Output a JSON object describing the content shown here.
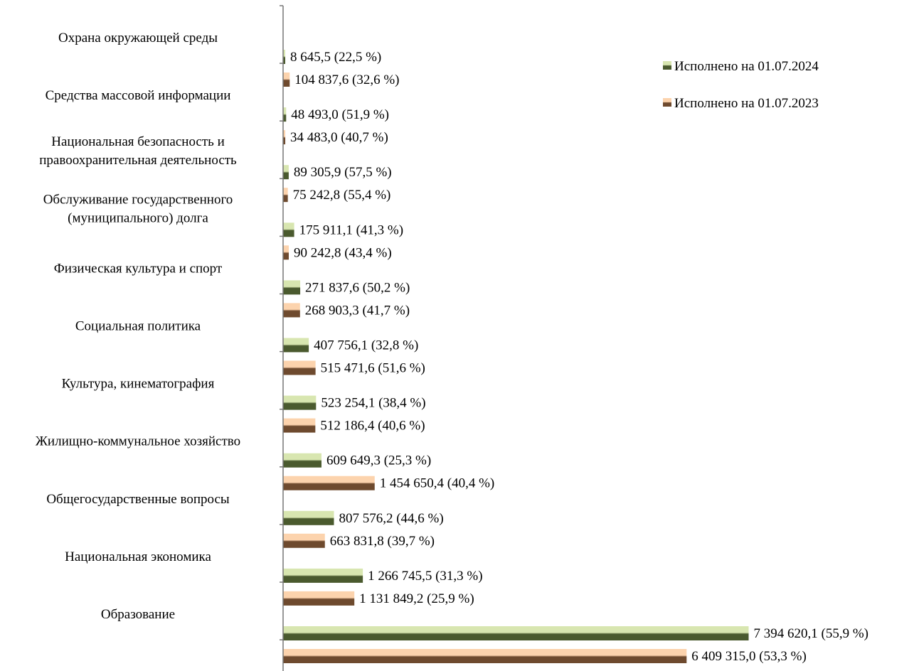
{
  "chart_data": {
    "type": "bar",
    "orientation": "horizontal",
    "categories": [
      "Охрана окружающей среды",
      "Средства массовой информации",
      "Национальная безопасность и правоохранительная деятельность",
      "Обслуживание государственного (муниципального) долга",
      "Физическая культура и спорт",
      "Социальная политика",
      "Культура, кинематография",
      "Жилищно-коммунальное хозяйство",
      "Общегосударственные вопросы",
      "Национальная экономика",
      "Образование"
    ],
    "category_lines": [
      [
        "Охрана окружающей среды"
      ],
      [
        "Средства массовой информации"
      ],
      [
        "Национальная безопасность и",
        "правоохранительная деятельность"
      ],
      [
        "Обслуживание государственного",
        "(муниципального) долга"
      ],
      [
        "Физическая культура и спорт"
      ],
      [
        "Социальная политика"
      ],
      [
        "Культура, кинематография"
      ],
      [
        "Жилищно-коммунальное хозяйство"
      ],
      [
        "Общегосударственные вопросы"
      ],
      [
        "Национальная экономика"
      ],
      [
        "Образование"
      ]
    ],
    "series": [
      {
        "name": "Исполнено на 01.07.2024",
        "values": [
          8645.5,
          48493.0,
          89305.9,
          175911.1,
          271837.6,
          407756.1,
          523254.1,
          609649.3,
          807576.2,
          1266745.5,
          7394620.1
        ],
        "labels": [
          "8 645,5  (22,5 %)",
          "48 493,0  (51,9 %)",
          "89 305,9  (57,5 %)",
          "175 911,1  (41,3 %)",
          "271 837,6  (50,2 %)",
          "407 756,1  (32,8 %)",
          "523 254,1  (38,4 %)",
          "609 649,3  (25,3 %)",
          "807 576,2  (44,6 %)",
          "1 266 745,5  (31,3 %)",
          "7 394 620,1  (55,9 %)"
        ],
        "color_light": "#d8e6b0",
        "color_dark": "#4a5a2e"
      },
      {
        "name": "Исполнено на 01.07.2023",
        "values": [
          104837.6,
          34483.0,
          75242.8,
          90242.8,
          268903.3,
          515471.6,
          512186.4,
          1454650.4,
          663831.8,
          1131849.2,
          6409315.0
        ],
        "labels": [
          "104 837,6  (32,6 %)",
          "34 483,0  (40,7 %)",
          "75 242,8  (55,4 %)",
          "90 242,8  (43,4 %)",
          "268 903,3  (41,7 %)",
          "515 471,6  (51,6 %)",
          "512 186,4  (40,6 %)",
          "1 454 650,4  (40,4 %)",
          "663 831,8  (39,7 %)",
          "1 131 849,2  (25,9 %)",
          "6 409 315,0  (53,3 %)"
        ],
        "color_light": "#fcd3ad",
        "color_dark": "#6e4a2e"
      }
    ],
    "xlim": [
      0,
      7400000
    ],
    "grid": false,
    "legend_position": "top-right",
    "axis_color": "#777777"
  }
}
